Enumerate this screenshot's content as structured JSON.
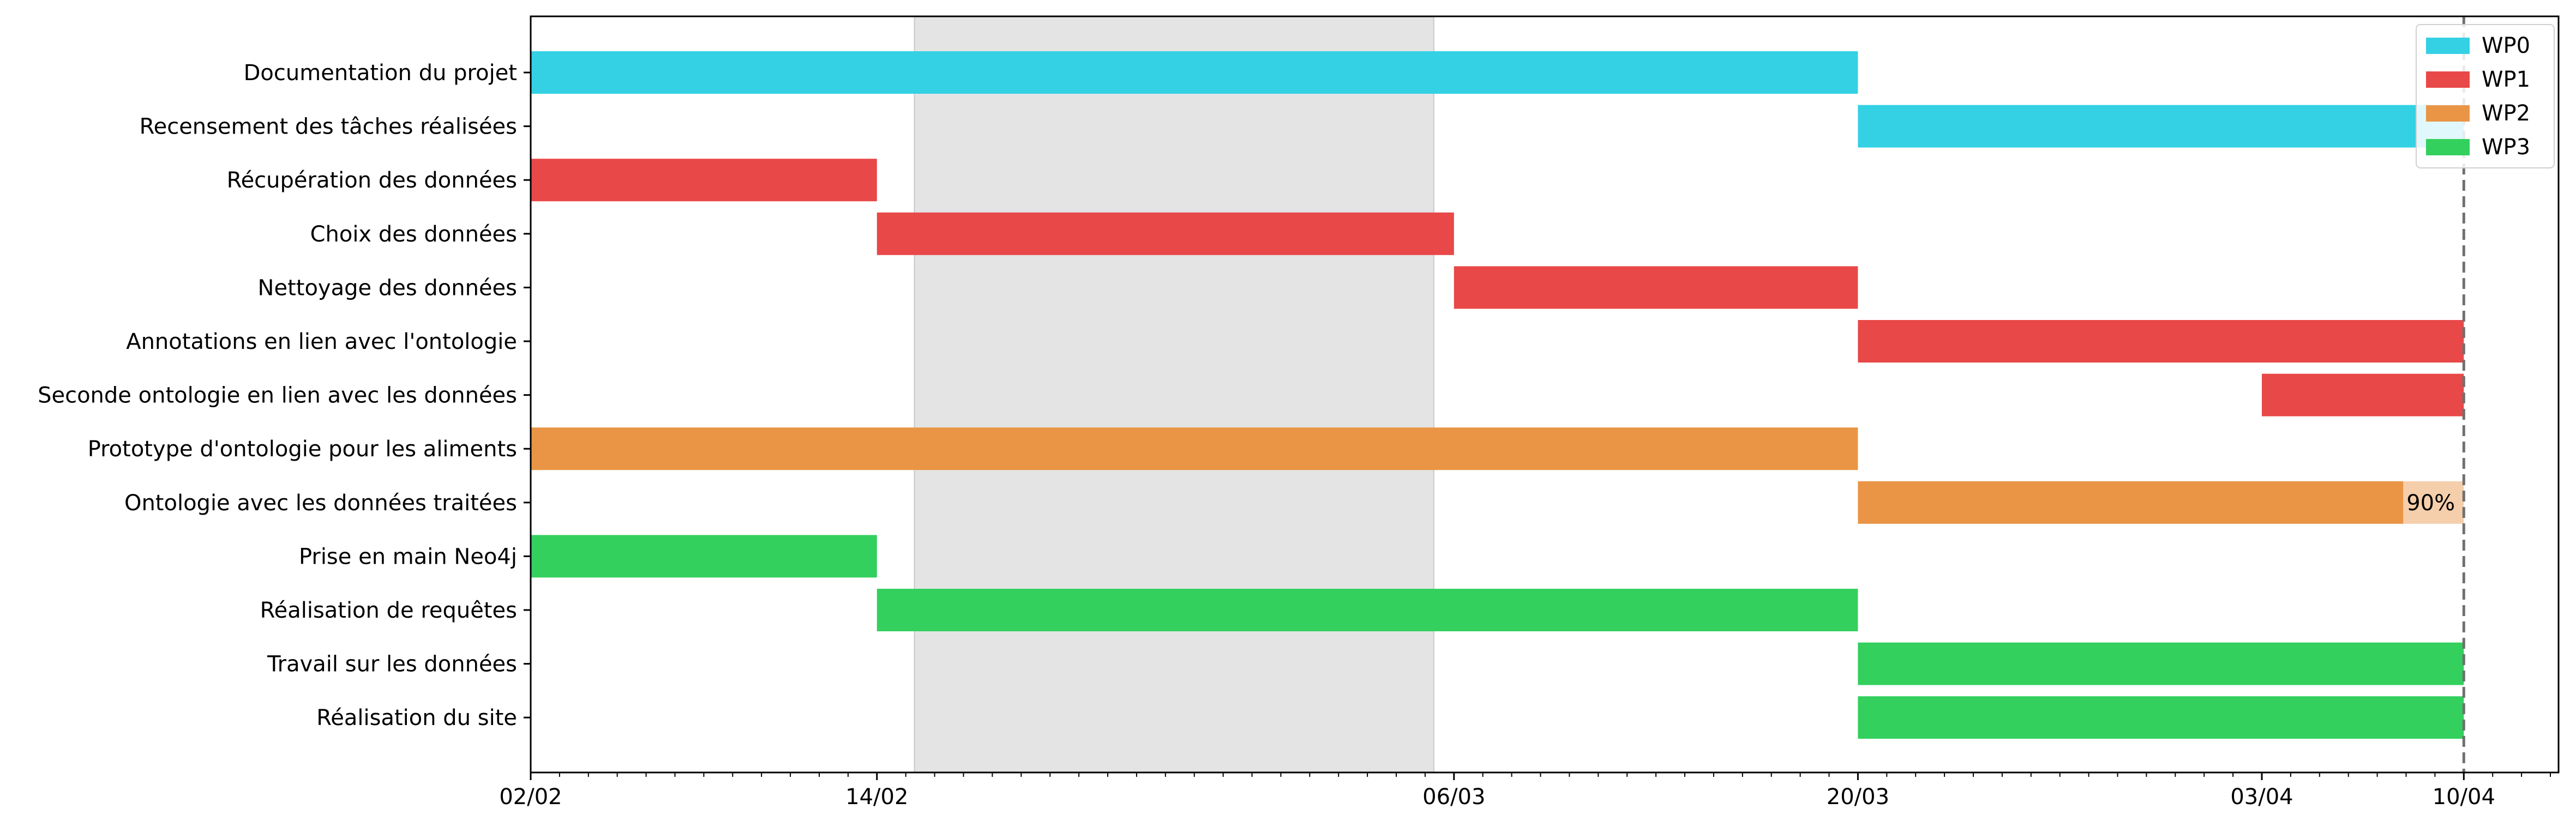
{
  "chart_data": {
    "type": "gantt",
    "x_axis": {
      "unit": "date (dd/mm)",
      "range": [
        "02/02",
        "15/04"
      ],
      "tick_labels": [
        "02/02",
        "14/02",
        "06/03",
        "20/03",
        "03/04",
        "10/04"
      ],
      "minor_ticks": "daily"
    },
    "shaded_period": {
      "start": "15/02",
      "end": "05/03",
      "color": "#e4e4e4"
    },
    "reference_line": {
      "date": "10/04",
      "style": "dashed",
      "color": "#707070"
    },
    "legend": {
      "placement": "top-right",
      "entries": [
        {
          "label": "WP0",
          "color": "#34d1e4"
        },
        {
          "label": "WP1",
          "color": "#e84848"
        },
        {
          "label": "WP2",
          "color": "#e99545"
        },
        {
          "label": "WP3",
          "color": "#33d05e"
        }
      ]
    },
    "tasks": [
      {
        "name": "Documentation du projet",
        "wp": "WP0",
        "start": "02/02",
        "end": "20/03"
      },
      {
        "name": "Recensement des tâches réalisées",
        "wp": "WP0",
        "start": "20/03",
        "end": "10/04"
      },
      {
        "name": "Récupération des données",
        "wp": "WP1",
        "start": "02/02",
        "end": "14/02"
      },
      {
        "name": "Choix des données",
        "wp": "WP1",
        "start": "14/02",
        "end": "06/03"
      },
      {
        "name": "Nettoyage des données",
        "wp": "WP1",
        "start": "06/03",
        "end": "20/03"
      },
      {
        "name": "Annotations en lien avec l'ontologie",
        "wp": "WP1",
        "start": "20/03",
        "end": "10/04"
      },
      {
        "name": "Seconde ontologie en lien avec les données",
        "wp": "WP1",
        "start": "03/04",
        "end": "10/04"
      },
      {
        "name": "Prototype d'ontologie pour les aliments",
        "wp": "WP2",
        "start": "02/02",
        "end": "20/03"
      },
      {
        "name": "Ontologie avec les données traitées",
        "wp": "WP2",
        "start": "20/03",
        "end": "10/04",
        "progress": 0.9,
        "progress_label": "90%"
      },
      {
        "name": "Prise en main Neo4j",
        "wp": "WP3",
        "start": "02/02",
        "end": "14/02"
      },
      {
        "name": "Réalisation de requêtes",
        "wp": "WP3",
        "start": "14/02",
        "end": "20/03"
      },
      {
        "name": "Travail sur les données",
        "wp": "WP3",
        "start": "20/03",
        "end": "10/04"
      },
      {
        "name": "Réalisation du site",
        "wp": "WP3",
        "start": "20/03",
        "end": "10/04"
      }
    ],
    "grid": false
  }
}
